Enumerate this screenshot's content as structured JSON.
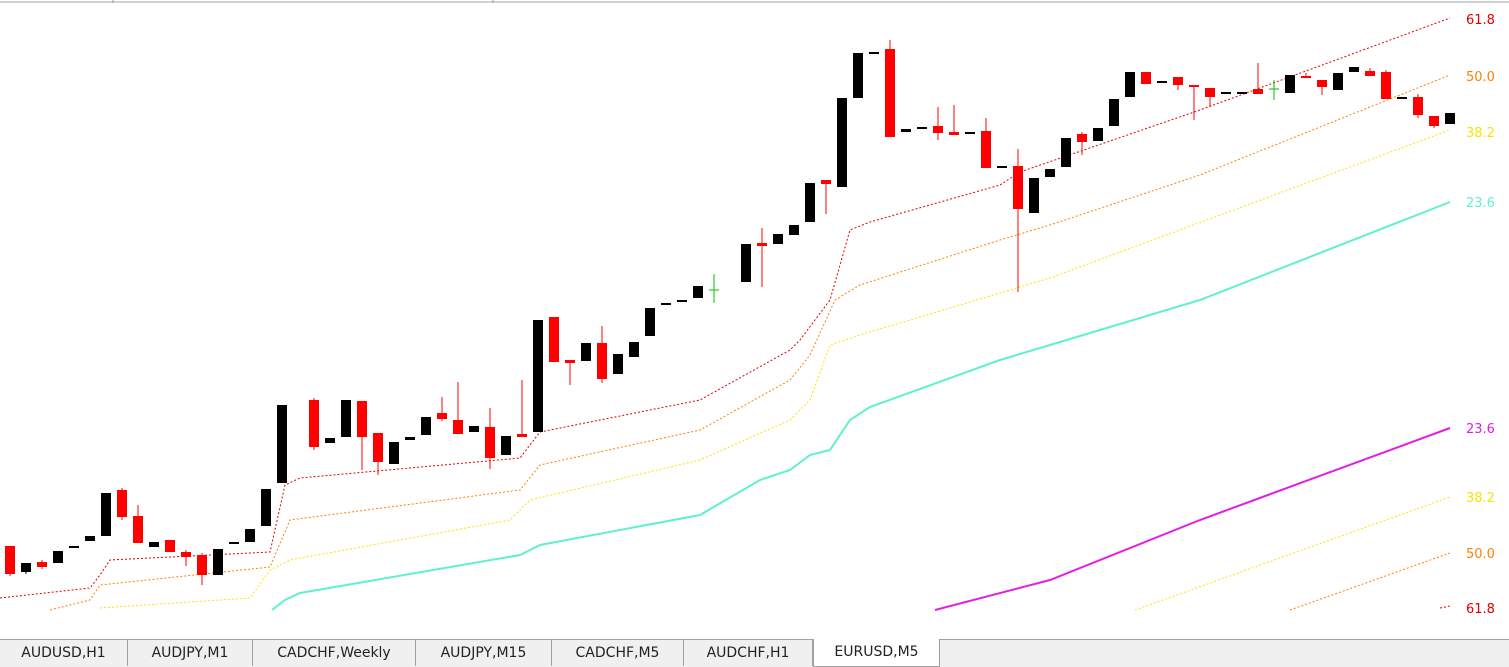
{
  "level_labels": [
    "61.8",
    "50.0",
    "38.2",
    "23.6",
    "23.6",
    "38.2",
    "50.0",
    "61.8"
  ],
  "tabs": [
    "AUDUSD,H1",
    "AUDJPY,M1",
    "CADCHF,Weekly",
    "AUDJPY,M15",
    "CADCHF,M5",
    "AUDCHF,H1",
    "EURUSD,M5"
  ],
  "active_tab": 6
}
